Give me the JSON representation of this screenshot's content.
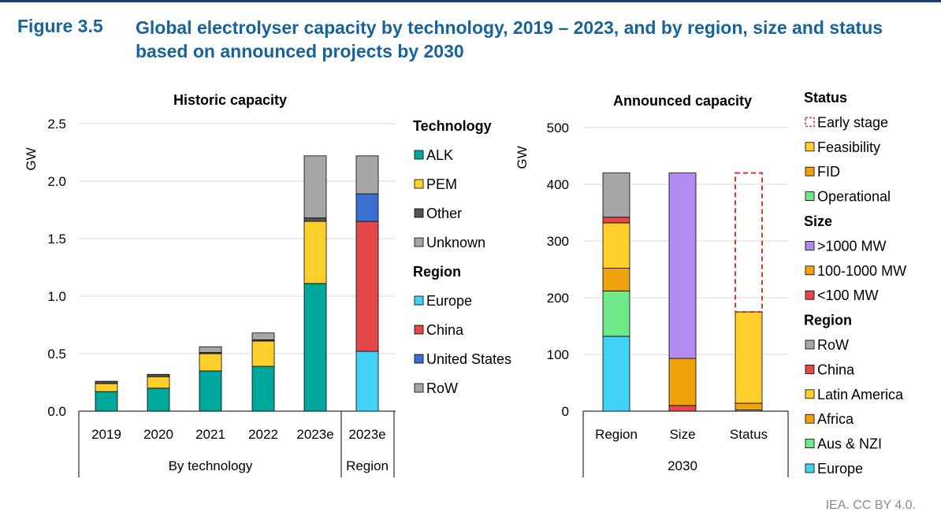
{
  "figure": {
    "number": "Figure 3.5",
    "title": "Global electrolyser capacity by technology, 2019 – 2023, and by region, size and status based on announced projects by 2030",
    "source": "IEA. CC BY 4.0."
  },
  "chart_data": [
    {
      "type": "bar",
      "stacked": true,
      "title": "Historic capacity",
      "ylabel": "GW",
      "ylim": [
        0,
        2.5
      ],
      "yticks": [
        0.0,
        0.5,
        1.0,
        1.5,
        2.0,
        2.5
      ],
      "ytick_labels": [
        "0.0",
        "0.5",
        "1.0",
        "1.5",
        "2.0",
        "2.5"
      ],
      "grid": true,
      "categories": [
        "2019",
        "2020",
        "2021",
        "2022",
        "2023e",
        "2023e"
      ],
      "groups": [
        {
          "label": "By technology",
          "categories": [
            "2019",
            "2020",
            "2021",
            "2022",
            "2023e"
          ]
        },
        {
          "label": "Region",
          "categories": [
            "2023e"
          ]
        }
      ],
      "legend_groups": [
        {
          "heading": "Technology",
          "entries": [
            "ALK",
            "PEM",
            "Other",
            "Unknown"
          ]
        },
        {
          "heading": "Region",
          "entries": [
            "Europe",
            "China",
            "United States",
            "RoW"
          ]
        }
      ],
      "legend_position": "right",
      "series": [
        {
          "name": "ALK",
          "color": "#00a79d",
          "values": [
            0.17,
            0.2,
            0.35,
            0.39,
            1.11,
            null
          ]
        },
        {
          "name": "PEM",
          "color": "#ffd02b",
          "values": [
            0.07,
            0.1,
            0.15,
            0.22,
            0.54,
            null
          ]
        },
        {
          "name": "Other",
          "color": "#555555",
          "values": [
            0.02,
            0.02,
            0.01,
            0.01,
            0.03,
            null
          ]
        },
        {
          "name": "Unknown",
          "color": "#a6a6a6",
          "values": [
            0.0,
            0.0,
            0.05,
            0.06,
            0.54,
            null
          ]
        },
        {
          "name": "Europe",
          "color": "#42d2f5",
          "values": [
            null,
            null,
            null,
            null,
            null,
            0.52
          ]
        },
        {
          "name": "China",
          "color": "#e34848",
          "values": [
            null,
            null,
            null,
            null,
            null,
            1.13
          ]
        },
        {
          "name": "United States",
          "color": "#3b6fd1",
          "values": [
            null,
            null,
            null,
            null,
            null,
            0.24
          ]
        },
        {
          "name": "RoW",
          "color": "#a6a6a6",
          "values": [
            null,
            null,
            null,
            null,
            null,
            0.33
          ]
        }
      ]
    },
    {
      "type": "bar",
      "stacked": true,
      "title": "Announced capacity",
      "ylabel": "GW",
      "ylim": [
        0,
        500
      ],
      "yticks": [
        0,
        100,
        200,
        300,
        400,
        500
      ],
      "ytick_labels": [
        "0",
        "100",
        "200",
        "300",
        "400",
        "500"
      ],
      "grid": true,
      "categories": [
        "Region",
        "Size",
        "Status"
      ],
      "group_label": "2030",
      "legend_groups": [
        {
          "heading": "Status",
          "entries": [
            "Early stage",
            "Feasibility",
            "FID",
            "Operational"
          ]
        },
        {
          "heading": "Size",
          "entries": [
            ">1000 MW",
            "100-1000 MW",
            "<100 MW"
          ]
        },
        {
          "heading": "Region",
          "entries": [
            "RoW",
            "China",
            "Latin America",
            "Africa",
            "Aus & NZI",
            "Europe"
          ]
        }
      ],
      "legend_position": "right",
      "series": [
        {
          "name": "Europe",
          "color": "#42d2f5",
          "values": [
            132,
            null,
            null
          ]
        },
        {
          "name": "Aus & NZI",
          "color": "#6ee888",
          "values": [
            80,
            null,
            null
          ]
        },
        {
          "name": "Africa",
          "color": "#f0a30a",
          "values": [
            40,
            null,
            null
          ]
        },
        {
          "name": "Latin America",
          "color": "#ffd02b",
          "values": [
            80,
            null,
            null
          ]
        },
        {
          "name": "China",
          "color": "#e34848",
          "values": [
            10,
            null,
            null
          ]
        },
        {
          "name": "RoW",
          "color": "#a6a6a6",
          "values": [
            78,
            null,
            null
          ]
        },
        {
          "name": "<100 MW",
          "color": "#e34848",
          "values": [
            null,
            10,
            null
          ]
        },
        {
          "name": "100-1000 MW",
          "color": "#f0a30a",
          "values": [
            null,
            83,
            null
          ]
        },
        {
          "name": ">1000 MW",
          "color": "#b18cf0",
          "values": [
            null,
            327,
            null
          ]
        },
        {
          "name": "Operational",
          "color": "#6ee888",
          "values": [
            null,
            null,
            2
          ]
        },
        {
          "name": "FID",
          "color": "#f0a30a",
          "values": [
            null,
            null,
            12
          ]
        },
        {
          "name": "Feasibility",
          "color": "#ffd02b",
          "values": [
            null,
            null,
            161
          ]
        },
        {
          "name": "Early stage",
          "color": "#dd3333",
          "dashed": true,
          "values": [
            null,
            null,
            245
          ]
        }
      ]
    }
  ]
}
